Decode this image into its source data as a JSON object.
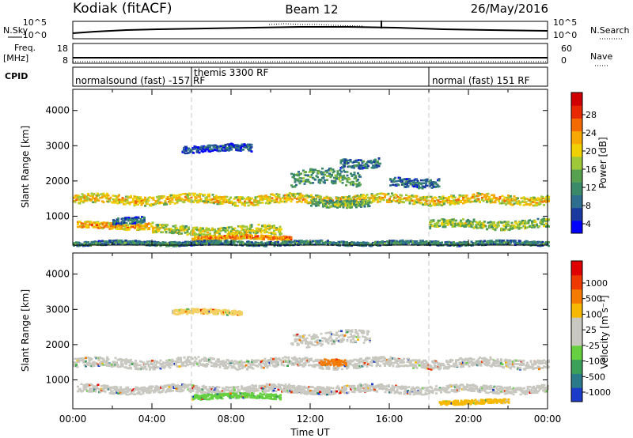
{
  "header": {
    "station": "Kodiak (fitACF)",
    "beam": "Beam 12",
    "date": "26/May/2016"
  },
  "strips": {
    "nsky_label": "N.Sky",
    "nsky_ticks": [
      "10^5",
      "10^0"
    ],
    "nsearch_label": "N.Search",
    "nsearch_ticks": [
      "10^5",
      "10^0"
    ],
    "freq_label": "Freq.",
    "freq_unit": "[MHz]",
    "freq_ticks": [
      "18",
      "8"
    ],
    "nave_label": "Nave",
    "nave_ticks": [
      "60",
      "0"
    ],
    "cpid_label": "CPID",
    "cpid_segments": [
      "normalsound (fast) -157 RF",
      "themis 3300 RF",
      "normal (fast) 151 RF"
    ]
  },
  "chart_data": [
    {
      "type": "heatmap",
      "quantity": "power",
      "xlabel": "",
      "ylabel": "Slant Range [km]",
      "xlim": [
        0,
        24
      ],
      "ylim": [
        180,
        4600
      ],
      "yticks": [
        "4000",
        "3000",
        "2000",
        "1000"
      ],
      "colorbar_label": "Power [dB]",
      "colorbar_ticks": [
        "28",
        "24",
        "20",
        "16",
        "12",
        "8",
        "4"
      ],
      "colorbar_colors": [
        "#0000ff",
        "#1a3aa0",
        "#2e6e8e",
        "#3a8a6a",
        "#56a050",
        "#9ec83a",
        "#f0d000",
        "#f7a800",
        "#f36a00",
        "#e82800",
        "#d00000"
      ],
      "bands": [
        {
          "start": 0.0,
          "end": 24.0,
          "center": 1500,
          "width": 260,
          "level": 20
        },
        {
          "start": 0.2,
          "end": 4.0,
          "center": 760,
          "width": 180,
          "level": 22
        },
        {
          "start": 4.0,
          "end": 10.5,
          "center": 620,
          "width": 240,
          "level": 18
        },
        {
          "start": 6.0,
          "end": 11.0,
          "center": 420,
          "width": 120,
          "level": 24
        },
        {
          "start": 11.0,
          "end": 14.5,
          "center": 2100,
          "width": 420,
          "level": 12
        },
        {
          "start": 13.5,
          "end": 15.5,
          "center": 2550,
          "width": 260,
          "level": 9
        },
        {
          "start": 12.0,
          "end": 15.0,
          "center": 1400,
          "width": 200,
          "level": 14
        },
        {
          "start": 16.0,
          "end": 18.5,
          "center": 2000,
          "width": 260,
          "level": 8
        },
        {
          "start": 18.0,
          "end": 24.0,
          "center": 800,
          "width": 240,
          "level": 16
        },
        {
          "start": 2.0,
          "end": 3.6,
          "center": 900,
          "width": 180,
          "level": 8
        },
        {
          "start": 5.5,
          "end": 9.0,
          "center": 2950,
          "width": 200,
          "level": 6
        },
        {
          "start": 0.0,
          "end": 24.0,
          "center": 260,
          "width": 120,
          "level": 10
        }
      ]
    },
    {
      "type": "heatmap",
      "quantity": "velocity",
      "xlabel": "Time UT",
      "ylabel": "Slant Range [km]",
      "xlim": [
        0,
        24
      ],
      "ylim": [
        180,
        4600
      ],
      "xticks": [
        "00:00",
        "04:00",
        "08:00",
        "12:00",
        "16:00",
        "20:00",
        "00:00"
      ],
      "yticks": [
        "4000",
        "3000",
        "2000",
        "1000"
      ],
      "colorbar_label": "Velocity [m s⁻¹]",
      "colorbar_ticks": [
        "1000",
        "500",
        "100",
        "25",
        "-25",
        "-100",
        "-500",
        "-1000"
      ],
      "colorbar_colors": [
        "#1a3cc8",
        "#2b7a8a",
        "#3aa05a",
        "#66d040",
        "#c8c8c0",
        "#c8c8c0",
        "#f6b800",
        "#f57a00",
        "#ee3a00",
        "#e00000"
      ],
      "bands": [
        {
          "start": 0.0,
          "end": 24.0,
          "center": 1500,
          "width": 260,
          "color": "#c8c8c0"
        },
        {
          "start": 0.2,
          "end": 24.0,
          "center": 760,
          "width": 220,
          "color": "#c8c8c0"
        },
        {
          "start": 11.0,
          "end": 15.0,
          "center": 2200,
          "width": 360,
          "color": "#c8c8c0"
        },
        {
          "start": 6.0,
          "end": 10.5,
          "center": 560,
          "width": 140,
          "color": "#66d040"
        },
        {
          "start": 12.5,
          "end": 13.8,
          "center": 1500,
          "width": 180,
          "color": "#f57a00"
        },
        {
          "start": 18.5,
          "end": 22.0,
          "center": 400,
          "width": 120,
          "color": "#f6b800"
        },
        {
          "start": 5.0,
          "end": 8.5,
          "center": 2950,
          "width": 140,
          "color": "#f6d060"
        }
      ]
    }
  ]
}
